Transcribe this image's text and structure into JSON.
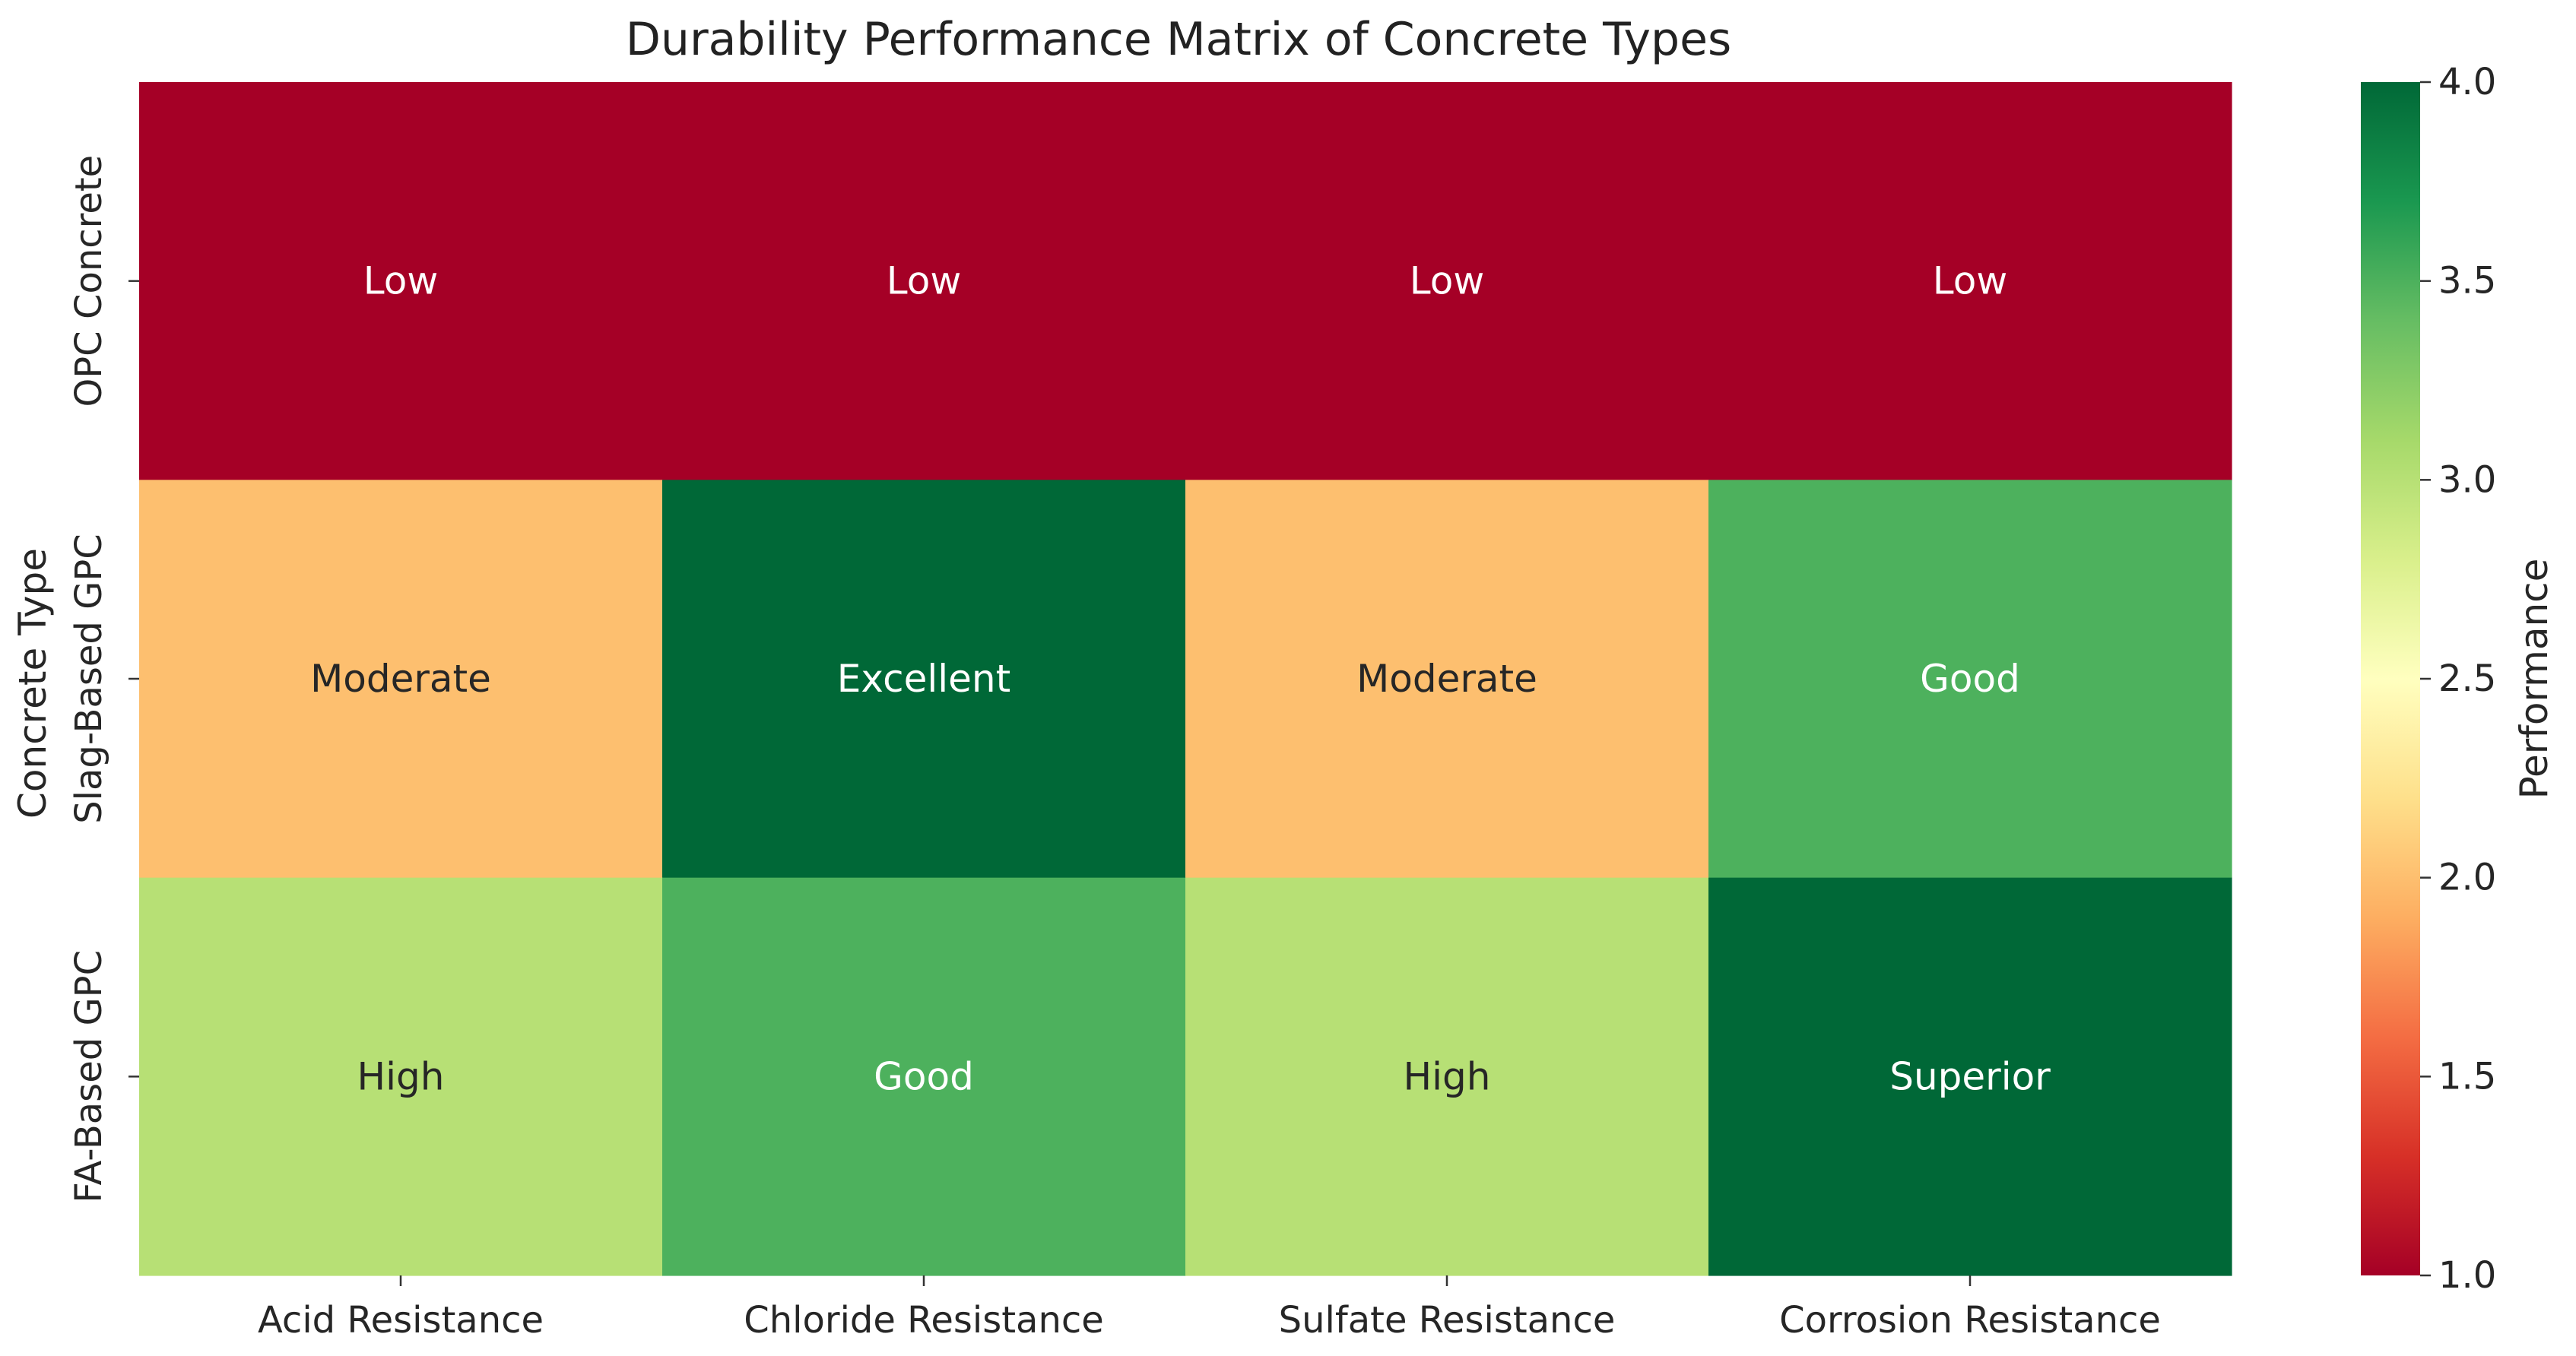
{
  "chart_data": {
    "type": "heatmap",
    "title": "Durability Performance Matrix of Concrete Types",
    "xlabel": "",
    "ylabel": "Concrete Type",
    "x_categories": [
      "Acid Resistance",
      "Chloride Resistance",
      "Sulfate Resistance",
      "Corrosion Resistance"
    ],
    "y_categories": [
      "OPC Concrete",
      "Slag-Based GPC",
      "FA-Based GPC"
    ],
    "values": [
      [
        1,
        1,
        1,
        1
      ],
      [
        2,
        4,
        2,
        3.5
      ],
      [
        3,
        3.5,
        3,
        4
      ]
    ],
    "annotations": [
      [
        "Low",
        "Low",
        "Low",
        "Low"
      ],
      [
        "Moderate",
        "Excellent",
        "Moderate",
        "Good"
      ],
      [
        "High",
        "Good",
        "High",
        "Superior"
      ]
    ],
    "colormap": "RdYlGn",
    "colormap_stops": [
      "#a50026",
      "#d73027",
      "#f46d43",
      "#fdae61",
      "#fee08b",
      "#ffffbf",
      "#d9ef8b",
      "#a6d96a",
      "#66bd63",
      "#1a9850",
      "#006837"
    ],
    "vmin": 1.0,
    "vmax": 4.0,
    "colorbar": {
      "label": "Performance",
      "ticks": [
        1.0,
        1.5,
        2.0,
        2.5,
        3.0,
        3.5,
        4.0
      ],
      "tick_labels": [
        "1.0",
        "1.5",
        "2.0",
        "2.5",
        "3.0",
        "3.5",
        "4.0"
      ]
    }
  }
}
